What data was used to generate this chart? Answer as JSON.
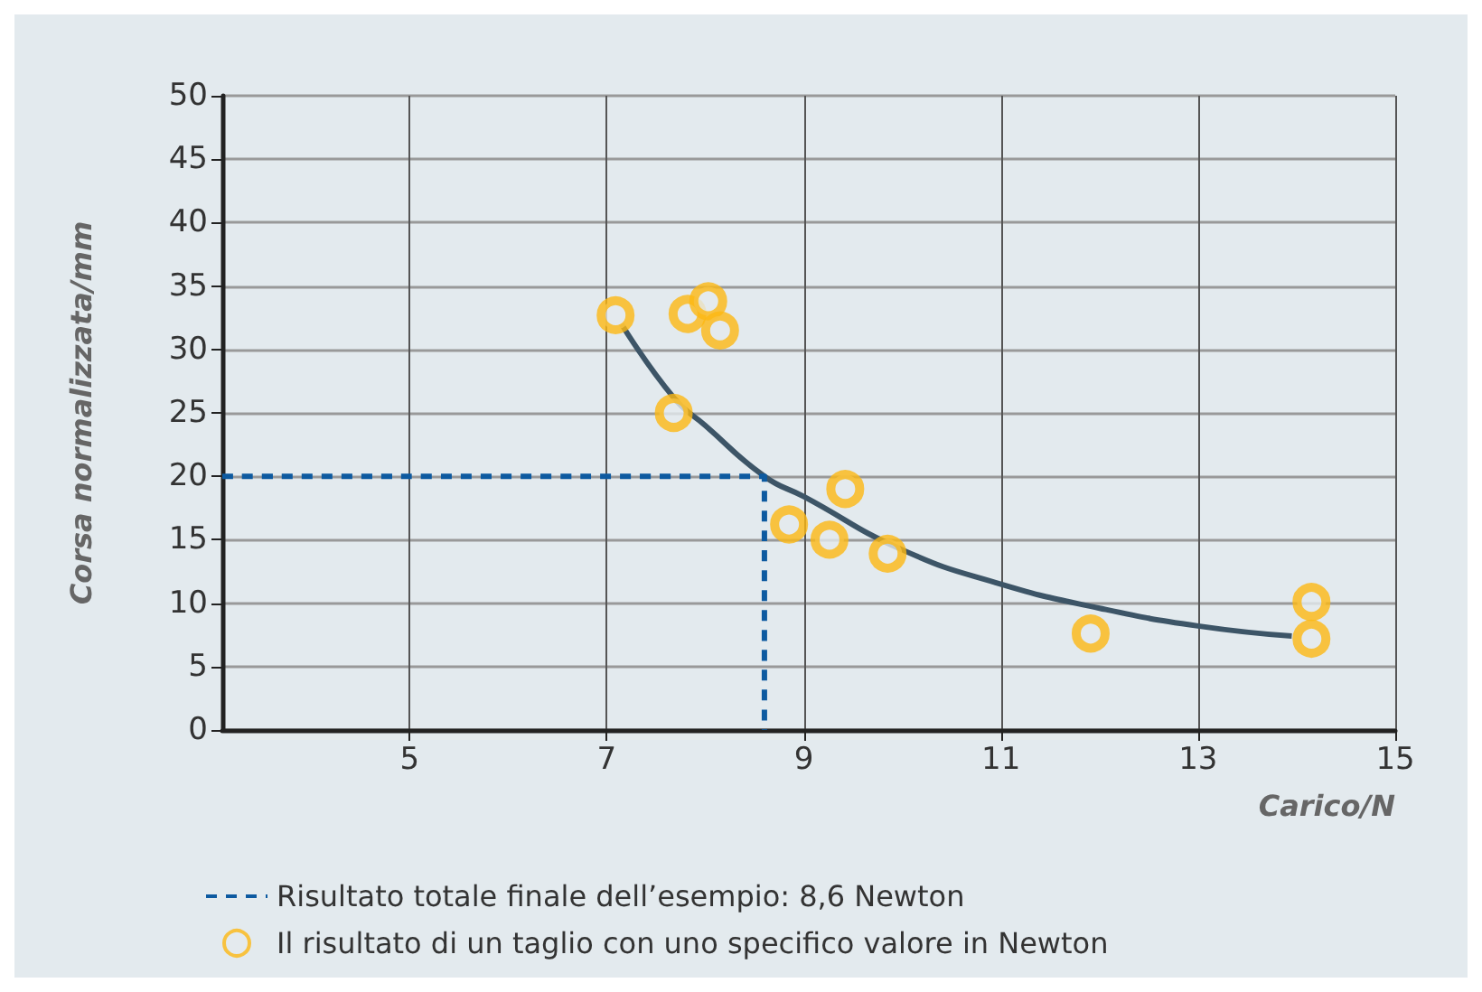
{
  "chart_data": {
    "type": "scatter",
    "xlabel": "Carico/N",
    "ylabel": "Corsa normalizzata/mm",
    "xlim": [
      3.1,
      15
    ],
    "xticks": [
      5,
      7,
      9,
      11,
      13,
      15
    ],
    "ylim": [
      0,
      50
    ],
    "yticks": [
      0,
      5,
      10,
      15,
      20,
      25,
      30,
      35,
      40,
      45,
      50
    ],
    "grid": true,
    "legend": "bottom",
    "series": [
      {
        "type": "line",
        "color": "#3d5567",
        "line_style": "solid",
        "marker": "none",
        "x": [
          7.15,
          7.68,
          8.0,
          8.6,
          9.0,
          10.0,
          11.0,
          12.0,
          13.0,
          13.95
        ],
        "values": [
          32.0,
          26.2,
          24.0,
          20.0,
          18.4,
          14.2,
          11.5,
          9.6,
          8.2,
          7.4
        ]
      },
      {
        "type": "line",
        "name": "Risultato totale finale dell’esempio: 8,6 Newton",
        "color": "#0d5aa0",
        "line_style": "dashed",
        "marker": "none",
        "x": [
          3.1,
          8.6,
          8.6
        ],
        "values": [
          20,
          20,
          0
        ]
      },
      {
        "name": "Il risultato di un taglio con uno specifico valore in Newton",
        "color": "#fdb813",
        "marker": "circle",
        "x": [
          7.09,
          7.82,
          8.03,
          8.15,
          7.68,
          8.85,
          9.42,
          9.26,
          9.85,
          11.91,
          14.15,
          14.15
        ],
        "values": [
          32.7,
          32.8,
          33.8,
          31.5,
          25.0,
          16.2,
          19.0,
          15.0,
          13.9,
          7.6,
          10.1,
          7.2
        ]
      }
    ]
  }
}
